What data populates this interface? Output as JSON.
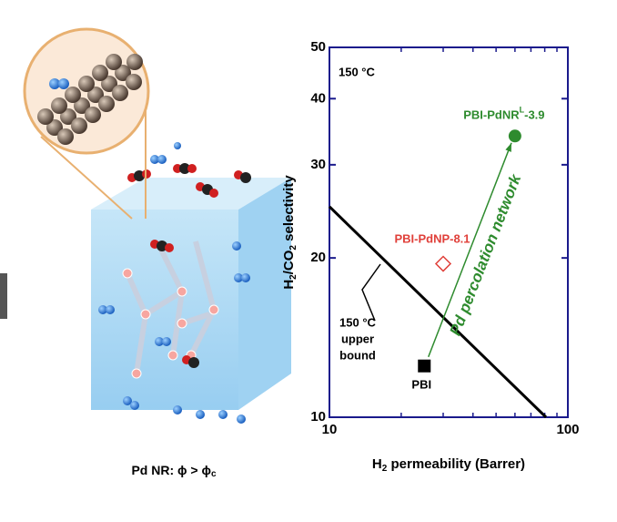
{
  "chart_data": {
    "type": "scatter",
    "caption": "Pd NR: ϕ > ϕ",
    "caption_subscript": "c",
    "temperature_label": "150 °C",
    "x_label": [
      "H",
      "2",
      " permeability (Barrer)"
    ],
    "y_label": [
      "H",
      "2",
      "/CO",
      "2",
      " selectivity"
    ],
    "xlim": [
      10,
      100
    ],
    "ylim": [
      10,
      50
    ],
    "xticks": [
      10,
      100
    ],
    "x_minor_ticks": [
      20,
      30,
      40,
      50,
      60,
      70,
      80,
      90
    ],
    "yticks": [
      10,
      20,
      30,
      40,
      50
    ],
    "log_x": true,
    "log_y": true,
    "series": [
      {
        "name": "PBI",
        "color": "#000000",
        "marker": "square",
        "x": [
          25
        ],
        "values": [
          12.5
        ]
      },
      {
        "name": "PBI-PdNP-8.1",
        "color": "#e0403a",
        "marker": "open-diamond",
        "x": [
          30
        ],
        "values": [
          19.5
        ]
      },
      {
        "name": "PBI-PdNR",
        "name_superscript": "L",
        "name_suffix": "-3.9",
        "color": "#2e8b2e",
        "marker": "circle",
        "x": [
          60
        ],
        "values": [
          34
        ]
      }
    ],
    "upper_bound": {
      "label": [
        "150 °C",
        "upper",
        "bound"
      ],
      "color": "#000000",
      "x": [
        10,
        81
      ],
      "values": [
        25,
        10
      ]
    },
    "arrow": {
      "label": "Pd percolation network",
      "color": "#2e8b2e",
      "x": [
        26,
        58
      ],
      "values": [
        13,
        33
      ]
    }
  }
}
